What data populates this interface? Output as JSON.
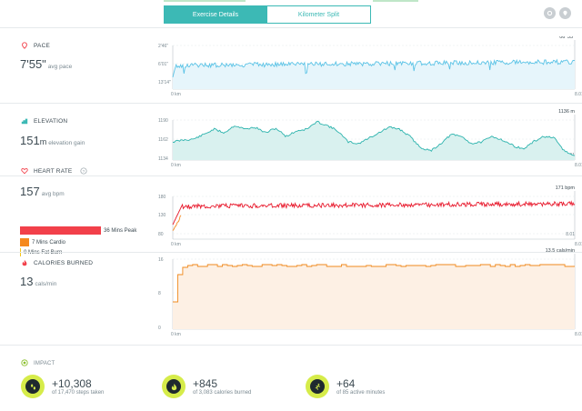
{
  "tabs": {
    "active": "Exercise Details",
    "inactive": "Kilometer Split"
  },
  "pace": {
    "title": "PACE",
    "value": "7'55\"",
    "sub": "avg pace",
    "y_top": "2'46\"",
    "y_mid": "6'01\"",
    "y_bot": "13'14\"",
    "x_start": "0 km",
    "x_end_top": "8.01",
    "x_end": "8.01 km",
    "peak_label": "06' 55\""
  },
  "elevation": {
    "title": "ELEVATION",
    "value": "151",
    "unit": "m",
    "sub": "elevation gain",
    "y_top": "1190",
    "y_mid": "1162",
    "y_bot": "1134",
    "x_start": "0 km",
    "x_end_top": "8.01",
    "x_end": "8.01 km",
    "peak_label": "1136 m"
  },
  "heart": {
    "title": "HEART RATE",
    "value": "157",
    "sub": "avg bpm",
    "zones": [
      {
        "label": "36 Mins Peak",
        "color": "#f2404a"
      },
      {
        "label": "7 Mins Cardio",
        "color": "#f5891e"
      },
      {
        "label": "0 Mins Fat Burn",
        "color": "#f5c518"
      }
    ],
    "y_top": "180",
    "y_mid": "130",
    "y_bot": "80",
    "x_start": "0 km",
    "x_end_top": "8.01",
    "x_end": "8.01 km",
    "peak_label": "171 bpm"
  },
  "calories": {
    "title": "CALORIES BURNED",
    "value": "13",
    "sub": "cals/min",
    "y_top": "16",
    "y_mid": "8",
    "y_bot": "0",
    "x_start": "0 km",
    "x_end_top": "8.01",
    "x_end": "8.01 km",
    "peak_label": "13.5 cals/min"
  },
  "impact": {
    "title": "IMPACT",
    "items": [
      {
        "value": "+10,308",
        "desc": "of 17,470 steps taken",
        "icon": "footsteps-icon"
      },
      {
        "value": "+845",
        "desc": "of 3,083 calories burned",
        "icon": "flame-icon"
      },
      {
        "value": "+64",
        "desc": "of 85 active minutes",
        "icon": "runner-icon"
      }
    ]
  },
  "colors": {
    "accent": "#3cb9b5",
    "pace_line": "#5bc3e6",
    "pace_fill": "#e6f5fb",
    "elev_line": "#2cb3ad",
    "elev_fill": "#d9f1ef",
    "heart_line": "#e8192c",
    "heart_lead": "#f5891e",
    "cal_line": "#f08a1e",
    "cal_fill": "#fdf0e4",
    "impact_circle": "#d6ec4a"
  }
}
